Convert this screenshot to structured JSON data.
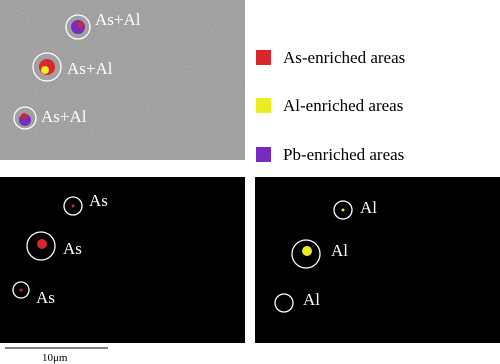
{
  "legend": [
    {
      "label": "As-enriched areas",
      "color": "#d8262a"
    },
    {
      "label": "Al-enriched areas",
      "color": "#ecec20"
    },
    {
      "label": "Pb-enriched areas",
      "color": "#7a2bbf"
    }
  ],
  "overlay_labels": [
    "As+Al",
    "As+Al",
    "As+Al"
  ],
  "as_map_labels": [
    "As",
    "As",
    "As"
  ],
  "al_map_labels": [
    "Al",
    "Al",
    "Al"
  ],
  "scale_bar": "10μm"
}
